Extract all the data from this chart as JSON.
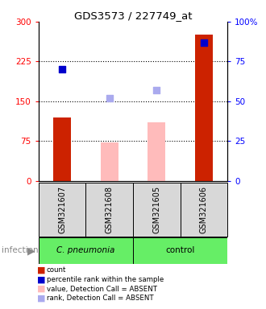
{
  "title": "GDS3573 / 227749_at",
  "samples": [
    "GSM321607",
    "GSM321608",
    "GSM321605",
    "GSM321606"
  ],
  "bar_values": [
    120,
    null,
    110,
    275
  ],
  "bar_colors": [
    "#cc2200",
    null,
    "#ffaaaa",
    "#cc2200"
  ],
  "absent_bar_values": [
    null,
    72,
    110,
    null
  ],
  "percentile_values": [
    210,
    null,
    null,
    260
  ],
  "rank_absent_values": [
    null,
    157,
    172,
    null
  ],
  "ylim_left": [
    0,
    300
  ],
  "ylim_right": [
    0,
    100
  ],
  "yticks_left": [
    0,
    75,
    150,
    225,
    300
  ],
  "yticks_right": [
    0,
    25,
    50,
    75,
    100
  ],
  "ytick_labels_right": [
    "0",
    "25",
    "50",
    "75",
    "100%"
  ],
  "dotted_lines": [
    75,
    150,
    225
  ],
  "legend_items": [
    {
      "label": "count",
      "color": "#cc2200"
    },
    {
      "label": "percentile rank within the sample",
      "color": "#0000cc"
    },
    {
      "label": "value, Detection Call = ABSENT",
      "color": "#ffbbbb"
    },
    {
      "label": "rank, Detection Call = ABSENT",
      "color": "#aaaaee"
    }
  ]
}
